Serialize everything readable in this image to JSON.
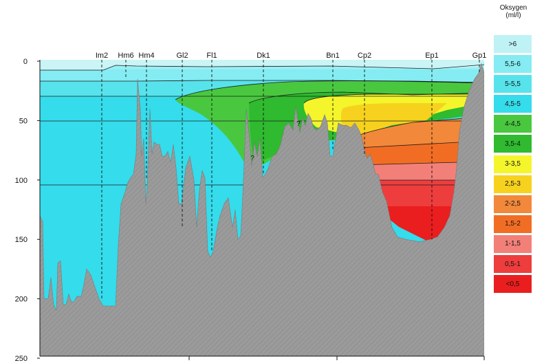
{
  "chart_data": {
    "type": "area",
    "title": "",
    "xlabel": "",
    "ylabel": "",
    "ylim": [
      0,
      250
    ],
    "yticks": [
      0,
      50,
      100,
      150,
      200,
      250
    ],
    "stations": [
      "Im2",
      "Hm6",
      "Hm4",
      "Gl2",
      "Fl1",
      "Dk1",
      "Bn1",
      "Cp2",
      "Ep1",
      "Gp1"
    ],
    "station_cast_depth_m": [
      200,
      15,
      100,
      140,
      160,
      95,
      75,
      80,
      150,
      10
    ],
    "question_marks": [
      "?",
      "?"
    ],
    "legend": {
      "title_line1": "Oksygen",
      "title_line2": "(ml/l)",
      "classes": [
        {
          "label": ">6",
          "color": "#bff2f5"
        },
        {
          "label": "5,5-6",
          "color": "#84ecf2"
        },
        {
          "label": "5-5,5",
          "color": "#57e3ec"
        },
        {
          "label": "4,5-5",
          "color": "#35dceb"
        },
        {
          "label": "4-4,5",
          "color": "#49c83f"
        },
        {
          "label": "3,5-4",
          "color": "#2fba2f"
        },
        {
          "label": "3-3,5",
          "color": "#f4f52b"
        },
        {
          "label": "2,5-3",
          "color": "#f6d21e"
        },
        {
          "label": "2-2,5",
          "color": "#f2883a"
        },
        {
          "label": "1,5-2",
          "color": "#f26d24"
        },
        {
          "label": "1-1,5",
          "color": "#f28079"
        },
        {
          "label": "0,5-1",
          "color": "#ee3d3d"
        },
        {
          "label": "<0,5",
          "color": "#ea1e1e"
        }
      ]
    },
    "seabed_color": "#9b9b9b"
  }
}
